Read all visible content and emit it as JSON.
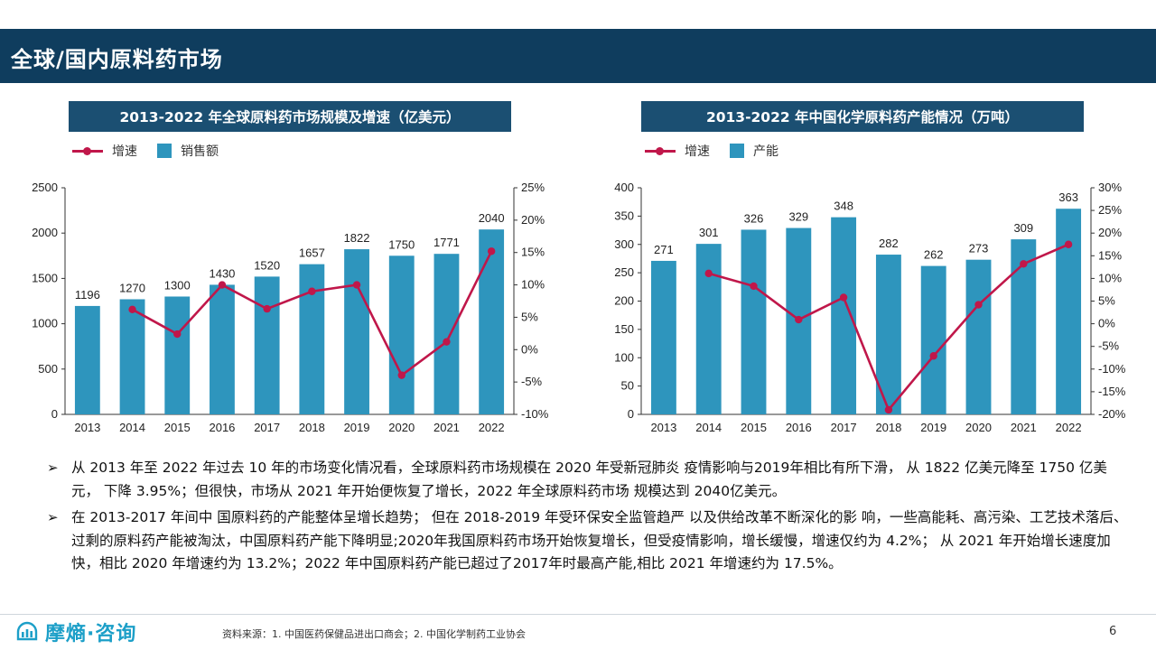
{
  "header": {
    "title": "全球/国内原料药市场"
  },
  "left_chart": {
    "title": "2013-2022 年全球原料药市场规模及增速（亿美元）",
    "legend": {
      "line": "增速",
      "bar": "销售额"
    }
  },
  "right_chart": {
    "title": "2013-2022 年中国化学原料药产能情况（万吨）",
    "legend": {
      "line": "增速",
      "bar": "产能"
    }
  },
  "chart_data": [
    {
      "type": "bar",
      "categories": [
        "2013",
        "2014",
        "2015",
        "2016",
        "2017",
        "2018",
        "2019",
        "2020",
        "2021",
        "2022"
      ],
      "series": [
        {
          "name": "销售额",
          "type": "bar",
          "axis": "left",
          "values": [
            1196,
            1270,
            1300,
            1430,
            1520,
            1657,
            1822,
            1750,
            1771,
            2040
          ]
        },
        {
          "name": "增速",
          "type": "line",
          "axis": "right",
          "values": [
            null,
            6.2,
            2.4,
            10.0,
            6.3,
            9.0,
            10.0,
            -3.95,
            1.2,
            15.2
          ]
        }
      ],
      "y_left": {
        "min": 0,
        "max": 2500,
        "ticks": [
          "0",
          "500",
          "1000",
          "1500",
          "2000",
          "2500"
        ]
      },
      "y_right": {
        "min": -10,
        "max": 25,
        "ticks": [
          "-10%",
          "-5%",
          "0%",
          "5%",
          "10%",
          "15%",
          "20%",
          "25%"
        ]
      },
      "colors": {
        "bar": "#2e95bd",
        "line": "#c0174a"
      }
    },
    {
      "type": "bar",
      "categories": [
        "2013",
        "2014",
        "2015",
        "2016",
        "2017",
        "2018",
        "2019",
        "2020",
        "2021",
        "2022"
      ],
      "series": [
        {
          "name": "产能",
          "type": "bar",
          "axis": "left",
          "values": [
            271,
            301,
            326,
            329,
            348,
            282,
            262,
            273,
            309,
            363
          ]
        },
        {
          "name": "增速",
          "type": "line",
          "axis": "right",
          "values": [
            null,
            11.1,
            8.3,
            0.9,
            5.8,
            -19.0,
            -7.1,
            4.2,
            13.2,
            17.5
          ]
        }
      ],
      "y_left": {
        "min": 0,
        "max": 400,
        "ticks": [
          "0",
          "50",
          "100",
          "150",
          "200",
          "250",
          "300",
          "350",
          "400"
        ]
      },
      "y_right": {
        "min": -20,
        "max": 30,
        "ticks": [
          "-20%",
          "-15%",
          "-10%",
          "-5%",
          "0%",
          "5%",
          "10%",
          "15%",
          "20%",
          "25%",
          "30%"
        ]
      },
      "colors": {
        "bar": "#2e95bd",
        "line": "#c0174a"
      }
    }
  ],
  "bullets": [
    "从 2013 年至 2022 年过去 10 年的市场变化情况看，全球原料药市场规模在 2020 年受新冠肺炎 疫情影响与2019年相比有所下滑， 从 1822 亿美元降至 1750 亿美元， 下降 3.95%；但很快，市场从 2021 年开始便恢复了增长，2022 年全球原料药市场 规模达到 2040亿美元。",
    "在 2013-2017 年间中 国原料药的产能整体呈增长趋势； 但在 2018-2019 年受环保安全监管趋严 以及供给改革不断深化的影 响，一些高能耗、高污染、工艺技术落后、过剩的原料药产能被淘汰，中国原料药产能下降明显;2020年我国原料药市场开始恢复增长，但受疫情影响，增长缓慢，增速仅约为 4.2%； 从 2021 年开始增长速度加快，相比 2020 年增速约为 13.2%；2022 年中国原料药产能已超过了2017年时最高产能,相比 2021 年增速约为 17.5%。"
  ],
  "footer": {
    "logo_text": "摩熵·咨询",
    "source": "资料来源：1. 中国医药保健品进出口商会；2. 中国化学制药工业协会",
    "page": "6"
  }
}
